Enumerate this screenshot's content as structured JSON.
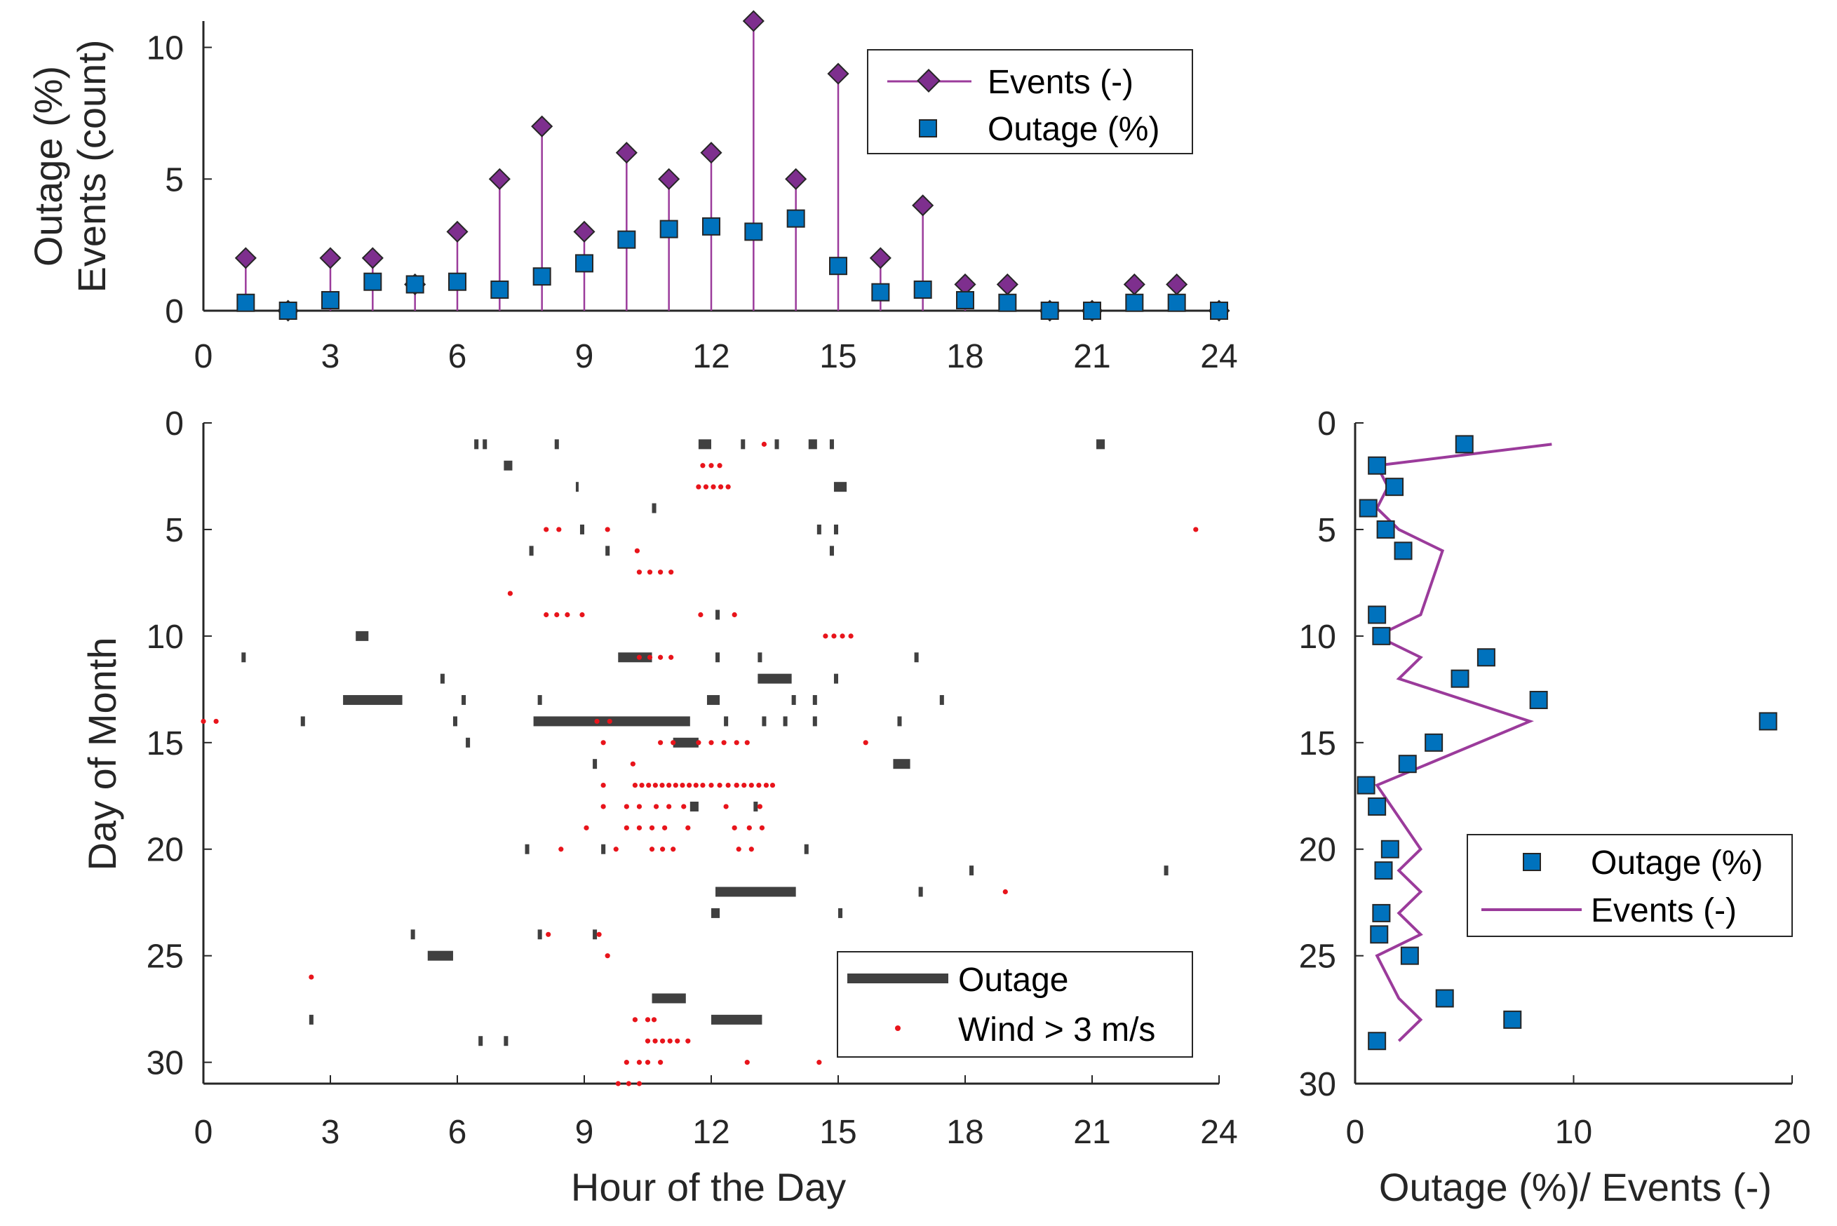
{
  "chart_data": [
    {
      "id": "hourly",
      "type": "stem+scatter",
      "xlabel": "",
      "ylabel_lines": [
        "Outage (%)",
        "Events (count)"
      ],
      "xlim": [
        0,
        24
      ],
      "ylim": [
        0,
        11
      ],
      "xticks": [
        "0",
        "3",
        "6",
        "9",
        "12",
        "15",
        "18",
        "21",
        "24"
      ],
      "xtick_values": [
        0,
        3,
        6,
        9,
        12,
        15,
        18,
        21,
        24
      ],
      "yticks": [
        "0",
        "5",
        "10"
      ],
      "ytick_values": [
        0,
        5,
        10
      ],
      "colors": {
        "events": "#9B3B9B",
        "events_marker": "#7E2F8E",
        "outage": "#0072BD"
      },
      "legend": {
        "position": "top-right",
        "entries": [
          "Events (-)",
          "Outage (%)"
        ]
      },
      "series": [
        {
          "name": "Events (-)",
          "x": [
            1,
            2,
            3,
            4,
            5,
            6,
            7,
            8,
            9,
            10,
            11,
            12,
            13,
            14,
            15,
            16,
            17,
            18,
            19,
            20,
            21,
            22,
            23,
            24
          ],
          "values": [
            2,
            0,
            2,
            2,
            1,
            3,
            5,
            7,
            3,
            6,
            5,
            6,
            11,
            5,
            9,
            2,
            4,
            1,
            1,
            0,
            0,
            1,
            1,
            0
          ]
        },
        {
          "name": "Outage (%)",
          "x": [
            1,
            2,
            3,
            4,
            5,
            6,
            7,
            8,
            9,
            10,
            11,
            12,
            13,
            14,
            15,
            16,
            17,
            18,
            19,
            20,
            21,
            22,
            23,
            24
          ],
          "values": [
            0.3,
            0,
            0.4,
            1.1,
            1.0,
            1.1,
            0.8,
            1.3,
            1.8,
            2.7,
            3.1,
            3.2,
            3.0,
            3.5,
            1.7,
            0.7,
            0.8,
            0.4,
            0.3,
            0,
            0,
            0.3,
            0.3,
            0
          ]
        }
      ]
    },
    {
      "id": "daily-hourly",
      "type": "event-raster",
      "xlabel": "Hour of the Day",
      "ylabel": "Day of Month",
      "xlim": [
        0,
        24
      ],
      "ylim": [
        31,
        0
      ],
      "xticks": [
        "0",
        "3",
        "6",
        "9",
        "12",
        "15",
        "18",
        "21",
        "24"
      ],
      "xtick_values": [
        0,
        3,
        6,
        9,
        12,
        15,
        18,
        21,
        24
      ],
      "yticks": [
        "0",
        "5",
        "10",
        "15",
        "20",
        "25",
        "30"
      ],
      "ytick_values": [
        0,
        5,
        10,
        15,
        20,
        25,
        30
      ],
      "colors": {
        "outage": "#404040",
        "wind": "#E8141B"
      },
      "legend": {
        "position": "bottom-right",
        "entries": [
          "Outage",
          "Wind > 3 m/s"
        ]
      },
      "outages": [
        {
          "day": 1,
          "start": 6.4,
          "end": 6.5
        },
        {
          "day": 1,
          "start": 6.6,
          "end": 6.7
        },
        {
          "day": 1,
          "start": 8.3,
          "end": 8.4
        },
        {
          "day": 1,
          "start": 11.7,
          "end": 12.0
        },
        {
          "day": 1,
          "start": 12.7,
          "end": 12.8
        },
        {
          "day": 1,
          "start": 13.5,
          "end": 13.6
        },
        {
          "day": 1,
          "start": 14.3,
          "end": 14.5
        },
        {
          "day": 1,
          "start": 14.8,
          "end": 14.9
        },
        {
          "day": 1,
          "start": 21.1,
          "end": 21.3
        },
        {
          "day": 2,
          "start": 7.1,
          "end": 7.3
        },
        {
          "day": 3,
          "start": 8.8,
          "end": 8.85
        },
        {
          "day": 3,
          "start": 14.9,
          "end": 15.2
        },
        {
          "day": 4,
          "start": 10.6,
          "end": 10.7
        },
        {
          "day": 5,
          "start": 8.9,
          "end": 9.0
        },
        {
          "day": 5,
          "start": 14.5,
          "end": 14.6
        },
        {
          "day": 5,
          "start": 14.9,
          "end": 15.0
        },
        {
          "day": 6,
          "start": 7.7,
          "end": 7.8
        },
        {
          "day": 6,
          "start": 9.5,
          "end": 9.6
        },
        {
          "day": 6,
          "start": 14.8,
          "end": 14.9
        },
        {
          "day": 9,
          "start": 12.1,
          "end": 12.2
        },
        {
          "day": 10,
          "start": 3.6,
          "end": 3.9
        },
        {
          "day": 11,
          "start": 0.9,
          "end": 1.0
        },
        {
          "day": 11,
          "start": 9.8,
          "end": 10.6
        },
        {
          "day": 11,
          "start": 12.1,
          "end": 12.2
        },
        {
          "day": 11,
          "start": 13.1,
          "end": 13.2
        },
        {
          "day": 11,
          "start": 16.8,
          "end": 16.9
        },
        {
          "day": 12,
          "start": 5.6,
          "end": 5.7
        },
        {
          "day": 12,
          "start": 13.1,
          "end": 13.9
        },
        {
          "day": 12,
          "start": 14.9,
          "end": 15.0
        },
        {
          "day": 13,
          "start": 3.3,
          "end": 4.7
        },
        {
          "day": 13,
          "start": 6.1,
          "end": 6.2
        },
        {
          "day": 13,
          "start": 7.9,
          "end": 8.0
        },
        {
          "day": 13,
          "start": 11.9,
          "end": 12.2
        },
        {
          "day": 13,
          "start": 13.9,
          "end": 14.0
        },
        {
          "day": 13,
          "start": 14.4,
          "end": 14.5
        },
        {
          "day": 13,
          "start": 17.4,
          "end": 17.5
        },
        {
          "day": 14,
          "start": 2.3,
          "end": 2.4
        },
        {
          "day": 14,
          "start": 5.9,
          "end": 6.0
        },
        {
          "day": 14,
          "start": 7.8,
          "end": 11.5
        },
        {
          "day": 14,
          "start": 12.3,
          "end": 12.4
        },
        {
          "day": 14,
          "start": 13.2,
          "end": 13.3
        },
        {
          "day": 14,
          "start": 13.7,
          "end": 13.8
        },
        {
          "day": 14,
          "start": 14.4,
          "end": 14.5
        },
        {
          "day": 14,
          "start": 16.4,
          "end": 16.5
        },
        {
          "day": 15,
          "start": 6.2,
          "end": 6.3
        },
        {
          "day": 15,
          "start": 11.1,
          "end": 11.7
        },
        {
          "day": 16,
          "start": 9.2,
          "end": 9.3
        },
        {
          "day": 16,
          "start": 16.3,
          "end": 16.7
        },
        {
          "day": 18,
          "start": 11.5,
          "end": 11.7
        },
        {
          "day": 18,
          "start": 13.0,
          "end": 13.1
        },
        {
          "day": 20,
          "start": 7.6,
          "end": 7.7
        },
        {
          "day": 20,
          "start": 9.4,
          "end": 9.5
        },
        {
          "day": 20,
          "start": 14.2,
          "end": 14.3
        },
        {
          "day": 21,
          "start": 18.1,
          "end": 18.2
        },
        {
          "day": 21,
          "start": 22.7,
          "end": 22.8
        },
        {
          "day": 22,
          "start": 12.1,
          "end": 14.0
        },
        {
          "day": 22,
          "start": 16.9,
          "end": 17.0
        },
        {
          "day": 23,
          "start": 12.0,
          "end": 12.2
        },
        {
          "day": 23,
          "start": 15.0,
          "end": 15.1
        },
        {
          "day": 24,
          "start": 4.9,
          "end": 5.0
        },
        {
          "day": 24,
          "start": 7.9,
          "end": 8.0
        },
        {
          "day": 24,
          "start": 9.2,
          "end": 9.3
        },
        {
          "day": 25,
          "start": 5.3,
          "end": 5.9
        },
        {
          "day": 27,
          "start": 10.6,
          "end": 11.4
        },
        {
          "day": 28,
          "start": 2.5,
          "end": 2.6
        },
        {
          "day": 28,
          "start": 12.0,
          "end": 13.2
        },
        {
          "day": 29,
          "start": 6.5,
          "end": 6.6
        },
        {
          "day": 29,
          "start": 7.1,
          "end": 7.2
        }
      ],
      "wind": [
        {
          "day": 1,
          "start": 13.2,
          "end": 13.3
        },
        {
          "day": 2,
          "start": 11.8,
          "end": 12.2
        },
        {
          "day": 3,
          "start": 11.7,
          "end": 12.4
        },
        {
          "day": 5,
          "start": 8.1,
          "end": 8.4
        },
        {
          "day": 5,
          "start": 9.5,
          "end": 9.6
        },
        {
          "day": 5,
          "start": 23.4,
          "end": 23.6
        },
        {
          "day": 6,
          "start": 10.2,
          "end": 10.3
        },
        {
          "day": 7,
          "start": 10.3,
          "end": 10.8
        },
        {
          "day": 7,
          "start": 11.0,
          "end": 11.1
        },
        {
          "day": 8,
          "start": 7.2,
          "end": 7.3
        },
        {
          "day": 9,
          "start": 8.1,
          "end": 8.6
        },
        {
          "day": 9,
          "start": 8.9,
          "end": 9.1
        },
        {
          "day": 9,
          "start": 11.7,
          "end": 11.9
        },
        {
          "day": 9,
          "start": 12.5,
          "end": 12.7
        },
        {
          "day": 10,
          "start": 14.7,
          "end": 15.3
        },
        {
          "day": 11,
          "start": 10.3,
          "end": 10.8
        },
        {
          "day": 11,
          "start": 11.0,
          "end": 11.1
        },
        {
          "day": 14,
          "start": 0.0,
          "end": 0.3
        },
        {
          "day": 14,
          "start": 9.3,
          "end": 9.6
        },
        {
          "day": 15,
          "start": 9.4,
          "end": 9.5
        },
        {
          "day": 15,
          "start": 10.8,
          "end": 11.1
        },
        {
          "day": 15,
          "start": 11.7,
          "end": 12.0
        },
        {
          "day": 15,
          "start": 12.3,
          "end": 12.6
        },
        {
          "day": 15,
          "start": 12.8,
          "end": 13.0
        },
        {
          "day": 15,
          "start": 15.6,
          "end": 15.7
        },
        {
          "day": 16,
          "start": 10.1,
          "end": 10.2
        },
        {
          "day": 17,
          "start": 9.4,
          "end": 9.6
        },
        {
          "day": 17,
          "start": 10.2,
          "end": 11.8
        },
        {
          "day": 17,
          "start": 12.0,
          "end": 12.6
        },
        {
          "day": 17,
          "start": 12.6,
          "end": 13.3
        },
        {
          "day": 17,
          "start": 13.4,
          "end": 13.5
        },
        {
          "day": 18,
          "start": 9.4,
          "end": 9.6
        },
        {
          "day": 18,
          "start": 10.0,
          "end": 10.3
        },
        {
          "day": 18,
          "start": 10.7,
          "end": 11.0
        },
        {
          "day": 18,
          "start": 11.3,
          "end": 11.5
        },
        {
          "day": 18,
          "start": 12.3,
          "end": 12.5
        },
        {
          "day": 18,
          "start": 13.1,
          "end": 13.3
        },
        {
          "day": 19,
          "start": 9.0,
          "end": 9.1
        },
        {
          "day": 19,
          "start": 10.0,
          "end": 10.3
        },
        {
          "day": 19,
          "start": 10.6,
          "end": 10.9
        },
        {
          "day": 19,
          "start": 11.4,
          "end": 11.6
        },
        {
          "day": 19,
          "start": 12.5,
          "end": 12.7
        },
        {
          "day": 19,
          "start": 12.9,
          "end": 13.2
        },
        {
          "day": 20,
          "start": 8.4,
          "end": 8.5
        },
        {
          "day": 20,
          "start": 9.7,
          "end": 9.8
        },
        {
          "day": 20,
          "start": 10.6,
          "end": 11.1
        },
        {
          "day": 20,
          "start": 12.6,
          "end": 12.8
        },
        {
          "day": 20,
          "start": 12.9,
          "end": 13.1
        },
        {
          "day": 22,
          "start": 18.9,
          "end": 19.0
        },
        {
          "day": 24,
          "start": 8.1,
          "end": 8.3
        },
        {
          "day": 24,
          "start": 9.3,
          "end": 9.4
        },
        {
          "day": 25,
          "start": 9.5,
          "end": 9.6
        },
        {
          "day": 26,
          "start": 2.5,
          "end": 2.6
        },
        {
          "day": 28,
          "start": 10.2,
          "end": 10.5
        },
        {
          "day": 28,
          "start": 10.6,
          "end": 10.7
        },
        {
          "day": 29,
          "start": 10.5,
          "end": 11.2
        },
        {
          "day": 29,
          "start": 11.4,
          "end": 11.6
        },
        {
          "day": 30,
          "start": 10.0,
          "end": 10.3
        },
        {
          "day": 30,
          "start": 10.5,
          "end": 10.8
        },
        {
          "day": 30,
          "start": 12.8,
          "end": 13.0
        },
        {
          "day": 30,
          "start": 14.5,
          "end": 14.6
        },
        {
          "day": 31,
          "start": 9.8,
          "end": 10.3
        }
      ]
    },
    {
      "id": "daily-summary",
      "type": "scatter+line",
      "xlabel": "Outage (%)/ Events (-)",
      "ylabel": "",
      "xlim": [
        0,
        20
      ],
      "ylim": [
        30,
        0
      ],
      "xticks": [
        "0",
        "10",
        "20"
      ],
      "xtick_values": [
        0,
        10,
        20
      ],
      "yticks": [
        "0",
        "5",
        "10",
        "15",
        "20",
        "25",
        "30"
      ],
      "ytick_values": [
        0,
        5,
        10,
        15,
        20,
        25,
        30
      ],
      "colors": {
        "outage": "#0072BD",
        "events": "#9B3B9B"
      },
      "legend": {
        "position": "center-right",
        "entries": [
          "Outage (%)",
          "Events (-)"
        ]
      },
      "series": [
        {
          "name": "Outage (%)",
          "x": [
            5.0,
            1.0,
            1.8,
            0.6,
            1.4,
            2.2,
            1.0,
            1.2,
            6.0,
            4.8,
            8.4,
            18.9,
            3.6,
            2.4,
            0.5,
            1.0,
            1.6,
            1.3,
            1.2,
            1.1,
            2.5,
            4.1,
            7.2,
            1.0
          ],
          "y": [
            1,
            2,
            3,
            4,
            5,
            6,
            9,
            10,
            11,
            12,
            13,
            14,
            15,
            16,
            17,
            18,
            20,
            21,
            23,
            24,
            25,
            27,
            28,
            29
          ]
        },
        {
          "name": "Events (-)",
          "x": [
            9,
            1,
            1.5,
            1,
            2,
            4,
            3,
            1,
            3,
            2,
            8,
            1,
            3,
            2,
            3,
            2,
            3,
            1,
            2,
            3,
            2
          ],
          "y": [
            1,
            2,
            3,
            4,
            5,
            6,
            9,
            10,
            11,
            12,
            14,
            17,
            20,
            21,
            22,
            23,
            24,
            25,
            27,
            28,
            29
          ]
        }
      ]
    }
  ]
}
